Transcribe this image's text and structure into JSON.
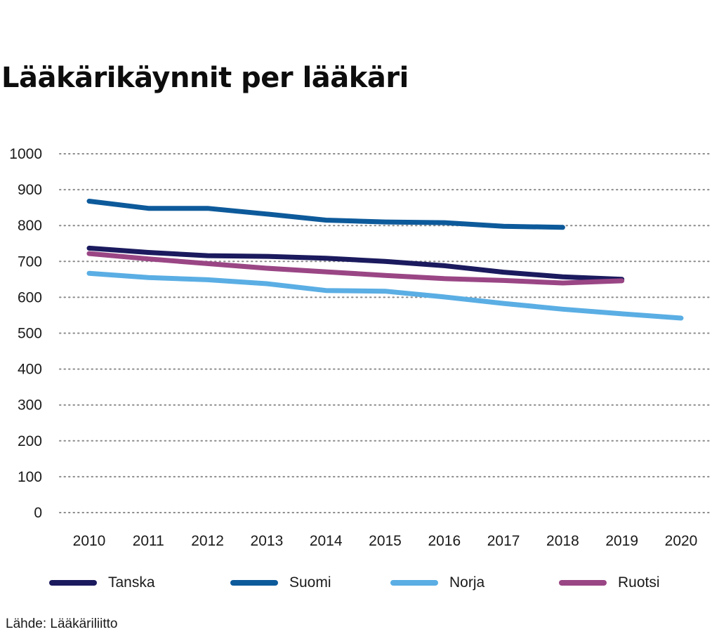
{
  "chart_data": {
    "type": "line",
    "title": "Lääkärikäynnit per lääkäri",
    "source": "Lähde: Lääkäriliitto",
    "xlabel": "",
    "ylabel": "",
    "ylim": [
      0,
      1000
    ],
    "yticks": [
      "0",
      "100",
      "200",
      "300",
      "400",
      "500",
      "600",
      "700",
      "800",
      "900",
      "1000"
    ],
    "x": [
      "2010",
      "2011",
      "2012",
      "2013",
      "2014",
      "2015",
      "2016",
      "2017",
      "2018",
      "2019",
      "2020"
    ],
    "grid": true,
    "legend_position": "bottom",
    "series": [
      {
        "name": "Tanska",
        "color": "#1b1a5e",
        "values": [
          737,
          725,
          716,
          714,
          709,
          700,
          688,
          670,
          657,
          650,
          null
        ]
      },
      {
        "name": "Suomi",
        "color": "#0d5a9b",
        "values": [
          868,
          848,
          848,
          832,
          815,
          810,
          808,
          798,
          795,
          null,
          null
        ]
      },
      {
        "name": "Norja",
        "color": "#5aaee4",
        "values": [
          667,
          655,
          649,
          638,
          619,
          617,
          601,
          583,
          567,
          554,
          542
        ]
      },
      {
        "name": "Ruotsi",
        "color": "#9a4685",
        "values": [
          722,
          707,
          694,
          681,
          671,
          661,
          652,
          647,
          640,
          646,
          null
        ]
      }
    ]
  }
}
